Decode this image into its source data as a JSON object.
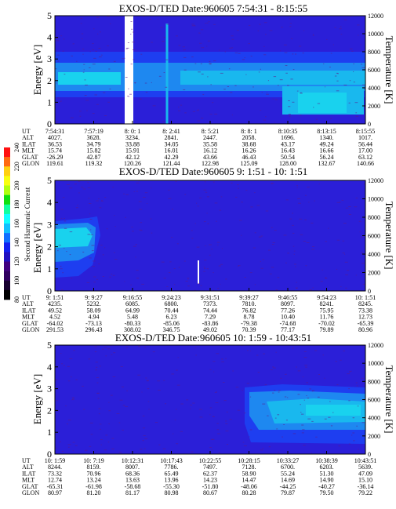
{
  "colors": {
    "background": "#2b1fd8",
    "band_low": "#1e3ef0",
    "band_mid": "#1e88f0",
    "band_high": "#19b8ee",
    "band_core": "#19d2ee",
    "grain": "#5b1a8c"
  },
  "colorbar": {
    "label": "Second Harmonic Current",
    "ticks": [
      "240",
      "220",
      "200",
      "180",
      "160",
      "140",
      "120",
      "100",
      "80"
    ],
    "colors": [
      "#ff1010",
      "#ff6a10",
      "#ffd010",
      "#f8ff10",
      "#b0ff10",
      "#10e010",
      "#10ffa0",
      "#10ffff",
      "#10c0ff",
      "#1070ff",
      "#1020f0",
      "#2010c0",
      "#400080",
      "#300060",
      "#180030",
      "#000000"
    ]
  },
  "chart_data": [
    {
      "type": "heatmap",
      "title": "EXOS-D/TED   Date:960605  7:54:31 - 8:15:55",
      "ylabel": "Energy [eV]",
      "y2label": "Temperature [K]",
      "ylim": [
        0,
        5
      ],
      "yticks": [
        "0",
        "1",
        "2",
        "3",
        "4",
        "5"
      ],
      "y2lim": [
        0,
        12000
      ],
      "y2ticks": [
        "0",
        "2000",
        "4000",
        "6000",
        "8000",
        "10000",
        "12000"
      ],
      "xticks": [
        "7:54:31",
        "7:57:19",
        "8: 0: 1",
        "8: 2:41",
        "8: 5:21",
        "8: 8: 1",
        "8:10:35",
        "8:13:15",
        "8:15:55"
      ],
      "rows": [
        {
          "label": "UT",
          "values": [
            "7:54:31",
            "7:57:19",
            "8: 0: 1",
            "8: 2:41",
            "8: 5:21",
            "8: 8: 1",
            "8:10:35",
            "8:13:15",
            "8:15:55"
          ]
        },
        {
          "label": "ALT",
          "values": [
            "4027.",
            "3628.",
            "3234.",
            "2841.",
            "2447.",
            "2058.",
            "1696.",
            "1340.",
            "1017."
          ]
        },
        {
          "label": "ILAT",
          "values": [
            "36.53",
            "34.79",
            "33.88",
            "34.05",
            "35.58",
            "38.68",
            "43.17",
            "49.24",
            "56.44"
          ]
        },
        {
          "label": "MLT",
          "values": [
            "15.74",
            "15.82",
            "15.91",
            "16.01",
            "16.12",
            "16.26",
            "16.43",
            "16.66",
            "17.00"
          ]
        },
        {
          "label": "GLAT",
          "values": [
            "-26.29",
            "42.87",
            "42.12",
            "42.29",
            "43.66",
            "46.43",
            "50.54",
            "56.24",
            "63.12"
          ]
        },
        {
          "label": "GLON",
          "values": [
            "119.61",
            "119.32",
            "120.26",
            "121.44",
            "122.98",
            "125.09",
            "128.00",
            "132.67",
            "140.66"
          ]
        }
      ]
    },
    {
      "type": "heatmap",
      "title": "EXOS-D/TED   Date:960605  9: 1:51 - 10: 1:51",
      "ylabel": "Energy [eV]",
      "y2label": "Temperature [K]",
      "ylim": [
        0,
        5
      ],
      "yticks": [
        "0",
        "1",
        "2",
        "3",
        "4",
        "5"
      ],
      "y2lim": [
        0,
        12000
      ],
      "y2ticks": [
        "0",
        "2000",
        "4000",
        "6000",
        "8000",
        "10000",
        "12000"
      ],
      "xticks": [
        "9: 1:51",
        "9: 9:27",
        "9:16:55",
        "9:24:23",
        "9:31:51",
        "9:39:27",
        "9:46:55",
        "9:54:23",
        "10: 1:51"
      ],
      "rows": [
        {
          "label": "UT",
          "values": [
            "9: 1:51",
            "9: 9:27",
            "9:16:55",
            "9:24:23",
            "9:31:51",
            "9:39:27",
            "9:46:55",
            "9:54:23",
            "10: 1:51"
          ]
        },
        {
          "label": "ALT",
          "values": [
            "4235.",
            "5232.",
            "6085.",
            "6800.",
            "7373.",
            "7810.",
            "8097.",
            "8241.",
            "8245."
          ]
        },
        {
          "label": "ILAT",
          "values": [
            "49.52",
            "58.09",
            "64.99",
            "70.44",
            "74.44",
            "76.82",
            "77.26",
            "75.95",
            "73.38"
          ]
        },
        {
          "label": "MLT",
          "values": [
            "4.52",
            "4.94",
            "5.48",
            "6.23",
            "7.29",
            "8.78",
            "10.40",
            "11.76",
            "12.73"
          ]
        },
        {
          "label": "GLAT",
          "values": [
            "-64.02",
            "-73.13",
            "-80.33",
            "-85.06",
            "-83.86",
            "-79.38",
            "-74.68",
            "-70.02",
            "-65.39"
          ]
        },
        {
          "label": "GLON",
          "values": [
            "291.53",
            "296.43",
            "308.02",
            "346.75",
            "49.02",
            "70.39",
            "77.17",
            "79.89",
            "80.96"
          ]
        }
      ]
    },
    {
      "type": "heatmap",
      "title": "EXOS-D/TED   Date:960605  10: 1:59 - 10:43:51",
      "ylabel": "Energy [eV]",
      "y2label": "Temperature [K]",
      "ylim": [
        0,
        5
      ],
      "yticks": [
        "0",
        "1",
        "2",
        "3",
        "4",
        "5"
      ],
      "y2lim": [
        0,
        12000
      ],
      "y2ticks": [
        "0",
        "2000",
        "4000",
        "6000",
        "8000",
        "10000",
        "12000"
      ],
      "xticks": [
        "10: 1:59",
        "10: 7:19",
        "10:12:31",
        "10:17:43",
        "10:22:55",
        "10:28:15",
        "10:33:27",
        "10:38:39",
        "10:43:51"
      ],
      "rows": [
        {
          "label": "UT",
          "values": [
            "10: 1:59",
            "10: 7:19",
            "10:12:31",
            "10:17:43",
            "10:22:55",
            "10:28:15",
            "10:33:27",
            "10:38:39",
            "10:43:51"
          ]
        },
        {
          "label": "ALT",
          "values": [
            "8244.",
            "8159.",
            "8007.",
            "7786.",
            "7497.",
            "7128.",
            "6700.",
            "6203.",
            "5639."
          ]
        },
        {
          "label": "ILAT",
          "values": [
            "73.32",
            "70.96",
            "68.36",
            "65.49",
            "62.37",
            "58.90",
            "55.24",
            "51.30",
            "47.09"
          ]
        },
        {
          "label": "MLT",
          "values": [
            "12.74",
            "13.24",
            "13.63",
            "13.96",
            "14.23",
            "14.47",
            "14.69",
            "14.90",
            "15.10"
          ]
        },
        {
          "label": "GLAT",
          "values": [
            "-65.31",
            "-61.98",
            "-58.68",
            "-55.30",
            "-51.80",
            "-48.06",
            "-44.25",
            "-40.27",
            "-36.14"
          ]
        },
        {
          "label": "GLON",
          "values": [
            "80.97",
            "81.20",
            "81.17",
            "80.98",
            "80.67",
            "80.28",
            "79.87",
            "79.50",
            "79.22"
          ]
        }
      ]
    }
  ]
}
